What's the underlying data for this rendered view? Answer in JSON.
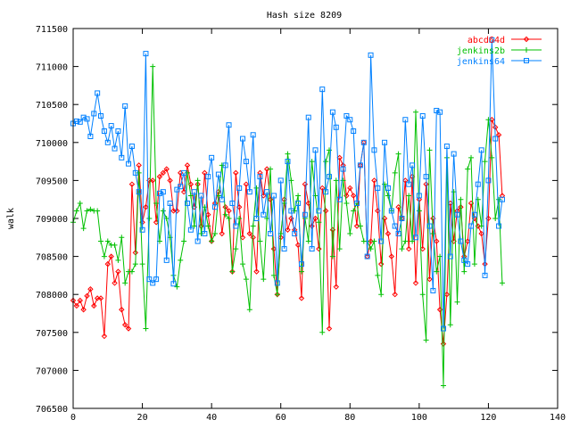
{
  "chart_data": {
    "type": "line",
    "title": "Hash size 8209",
    "xlabel": "",
    "ylabel": "walk",
    "xlim": [
      0,
      140
    ],
    "ylim": [
      706500,
      711500
    ],
    "xticks": [
      0,
      20,
      40,
      60,
      80,
      100,
      120,
      140
    ],
    "yticks": [
      706500,
      707000,
      707500,
      708000,
      708500,
      709000,
      709500,
      710000,
      710500,
      711000,
      711500
    ],
    "grid": false,
    "legend_position": "top-right",
    "series": [
      {
        "name": "abcd64d",
        "color": "#ff0000",
        "marker": "diamond",
        "values": [
          707920,
          707850,
          707920,
          707800,
          707980,
          708070,
          707850,
          707950,
          707950,
          707450,
          708400,
          708500,
          708150,
          708300,
          707800,
          707600,
          707550,
          709450,
          708550,
          709700,
          708950,
          709150,
          709500,
          709500,
          708950,
          709550,
          709600,
          709650,
          709500,
          709100,
          709100,
          709600,
          709350,
          709700,
          709450,
          709150,
          709450,
          708900,
          709600,
          709050,
          708700,
          709200,
          709350,
          708800,
          709150,
          709100,
          708300,
          709600,
          709150,
          708750,
          709450,
          708800,
          708750,
          708300,
          709600,
          709300,
          709650,
          709250,
          708600,
          708000,
          708750,
          709250,
          708850,
          709000,
          708850,
          708650,
          707950,
          709450,
          709200,
          708900,
          709000,
          708600,
          709400,
          709100,
          707550,
          708850,
          708100,
          709800,
          709700,
          709300,
          709400,
          709300,
          708900,
          709700,
          710000,
          708500,
          708700,
          709500,
          709100,
          708400,
          709000,
          708800,
          708500,
          708000,
          709150,
          709000,
          709500,
          708600,
          709550,
          708150,
          709250,
          708600,
          709450,
          708200,
          709000,
          708700,
          707800,
          707350,
          708000,
          709200,
          708700,
          709100,
          709150,
          708500,
          708700,
          709200,
          709000,
          708900,
          708800,
          708400,
          709000,
          710300,
          710200,
          710100,
          709300
        ]
      },
      {
        "name": "jenkins2b",
        "color": "#00c000",
        "marker": "plus",
        "values": [
          708950,
          709100,
          709200,
          708870,
          709100,
          709120,
          709100,
          709100,
          708700,
          708500,
          708700,
          708650,
          708650,
          708450,
          708750,
          708150,
          708300,
          708300,
          708400,
          709600,
          708400,
          707550,
          709000,
          711000,
          709200,
          708700,
          709100,
          709000,
          708750,
          708250,
          708100,
          708450,
          708700,
          709600,
          709300,
          708900,
          709500,
          708800,
          709150,
          708900,
          708700,
          708800,
          709300,
          709700,
          709050,
          709000,
          708300,
          708600,
          709000,
          708400,
          708200,
          707800,
          708900,
          709400,
          708700,
          708200,
          709000,
          709650,
          708250,
          708000,
          708800,
          709200,
          709850,
          709500,
          709100,
          709300,
          708300,
          709000,
          708700,
          709750,
          709300,
          708950,
          707500,
          709750,
          709900,
          708500,
          709500,
          708600,
          709500,
          709200,
          708800,
          709100,
          709200,
          708900,
          708700,
          708700,
          708600,
          708700,
          708250,
          708000,
          709450,
          709300,
          709100,
          709600,
          709850,
          708600,
          708700,
          709300,
          708700,
          710400,
          709100,
          708000,
          707400,
          709900,
          708800,
          708300,
          708500,
          706800,
          709800,
          707600,
          709350,
          707900,
          709250,
          708300,
          709650,
          709800,
          708400,
          709250,
          708900,
          709750,
          710300,
          709800,
          709000,
          709250,
          708150
        ]
      },
      {
        "name": "jenkins64",
        "color": "#0080ff",
        "marker": "square",
        "values": [
          710250,
          710280,
          710270,
          710330,
          710310,
          710080,
          710380,
          710650,
          710350,
          710150,
          710000,
          710220,
          709920,
          710150,
          709800,
          710480,
          709720,
          709950,
          709600,
          709350,
          708850,
          711170,
          708200,
          708150,
          708200,
          709330,
          709350,
          708450,
          709200,
          708140,
          709380,
          709420,
          709600,
          709200,
          708850,
          709350,
          708700,
          709300,
          708800,
          709550,
          709800,
          709150,
          709580,
          709250,
          709700,
          710230,
          709200,
          708900,
          709400,
          710050,
          709750,
          709350,
          710100,
          709000,
          709550,
          709050,
          709350,
          708800,
          709300,
          708150,
          709500,
          708600,
          709750,
          709100,
          708800,
          709200,
          708400,
          709050,
          710330,
          708600,
          709900,
          709100,
          710700,
          709350,
          709550,
          710400,
          710200,
          709250,
          709650,
          710350,
          710300,
          710150,
          709200,
          709700,
          710000,
          708500,
          711150,
          709900,
          709400,
          708700,
          710000,
          709400,
          709100,
          708900,
          708800,
          709000,
          710300,
          709450,
          709700,
          708750,
          709300,
          710350,
          709550,
          708900,
          708050,
          710420,
          710400,
          707550,
          709950,
          708500,
          709850,
          709050,
          708700,
          708450,
          708400,
          708900,
          709050,
          709450,
          709900,
          708250,
          709500,
          711350,
          710050,
          708900,
          709250
        ]
      }
    ]
  }
}
